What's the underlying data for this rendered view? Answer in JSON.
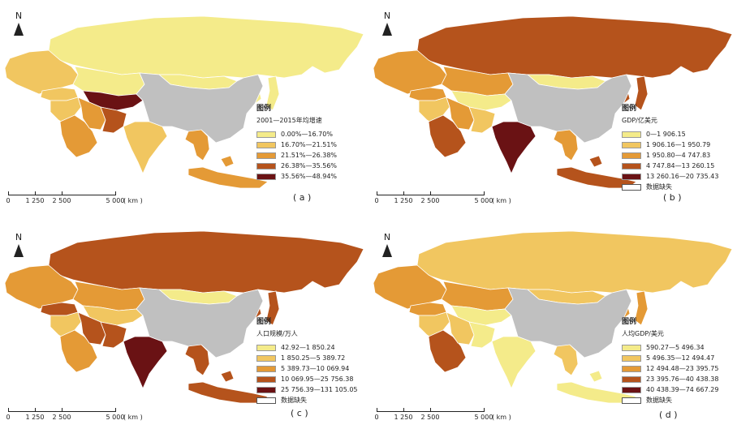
{
  "north_label": "N",
  "scale": {
    "ticks": [
      "0",
      "1 250",
      "2 500",
      "5 000"
    ],
    "unit": "( km )"
  },
  "colors": {
    "missing": "#ffffff",
    "china": "#c0c0c0",
    "land_outline": "#ffffff",
    "ramp": [
      "#f4eb8a",
      "#f1c660",
      "#e49a36",
      "#b5531c",
      "#6a1214"
    ]
  },
  "panels": [
    {
      "caption": "( a )",
      "legend_title": "图例",
      "legend_subtitle": "2001—2015年均增速",
      "classes": [
        "0.00%—16.70%",
        "16.70%—21.51%",
        "21.51%—26.38%",
        "26.38%—35.56%",
        "35.56%—48.94%"
      ],
      "missing_label": ""
    },
    {
      "caption": "( b )",
      "legend_title": "图例",
      "legend_subtitle": "GDP/亿美元",
      "classes": [
        "0—1 906.15",
        "1 906.16—1 950.79",
        "1 950.80—4 747.83",
        "4 747.84—13 260.15",
        "13 260.16—20 735.43"
      ],
      "missing_label": "数据缺失"
    },
    {
      "caption": "( c )",
      "legend_title": "图例",
      "legend_subtitle": "人口规模/万人",
      "classes": [
        "42.92—1 850.24",
        "1 850.25—5 389.72",
        "5 389.73—10 069.94",
        "10 069.95—25 756.38",
        "25 756.39—131 105.05"
      ],
      "missing_label": "数据缺失"
    },
    {
      "caption": "( d )",
      "legend_title": "图例",
      "legend_subtitle": "人均GDP/美元",
      "classes": [
        "590.27—5 496.34",
        "5 496.35—12 494.47",
        "12 494.48—23 395.75",
        "23 395.76—40 438.38",
        "40 438.39—74 667.29"
      ],
      "missing_label": "数据缺失"
    }
  ],
  "region_classes": [
    {
      "region": "russia",
      "classes": [
        0,
        3,
        3,
        1
      ]
    },
    {
      "region": "europe",
      "classes": [
        1,
        2,
        2,
        2
      ]
    },
    {
      "region": "turkey",
      "classes": [
        1,
        2,
        3,
        2
      ]
    },
    {
      "region": "kazakhstan",
      "classes": [
        0,
        2,
        2,
        2
      ]
    },
    {
      "region": "central_asia",
      "classes": [
        4,
        0,
        1,
        0
      ]
    },
    {
      "region": "middle_east",
      "classes": [
        1,
        1,
        1,
        1
      ]
    },
    {
      "region": "saudi_arabia",
      "classes": [
        2,
        3,
        2,
        3
      ]
    },
    {
      "region": "iran",
      "classes": [
        2,
        2,
        3,
        1
      ]
    },
    {
      "region": "afghanistan_pakistan",
      "classes": [
        3,
        1,
        3,
        0
      ]
    },
    {
      "region": "india",
      "classes": [
        1,
        4,
        4,
        0
      ]
    },
    {
      "region": "mongolia",
      "classes": [
        0,
        0,
        0,
        1
      ]
    },
    {
      "region": "southeast_asia",
      "classes": [
        2,
        2,
        3,
        1
      ]
    },
    {
      "region": "indonesia",
      "classes": [
        2,
        3,
        3,
        0
      ]
    },
    {
      "region": "japan_korea",
      "classes": [
        0,
        3,
        3,
        2
      ]
    }
  ]
}
